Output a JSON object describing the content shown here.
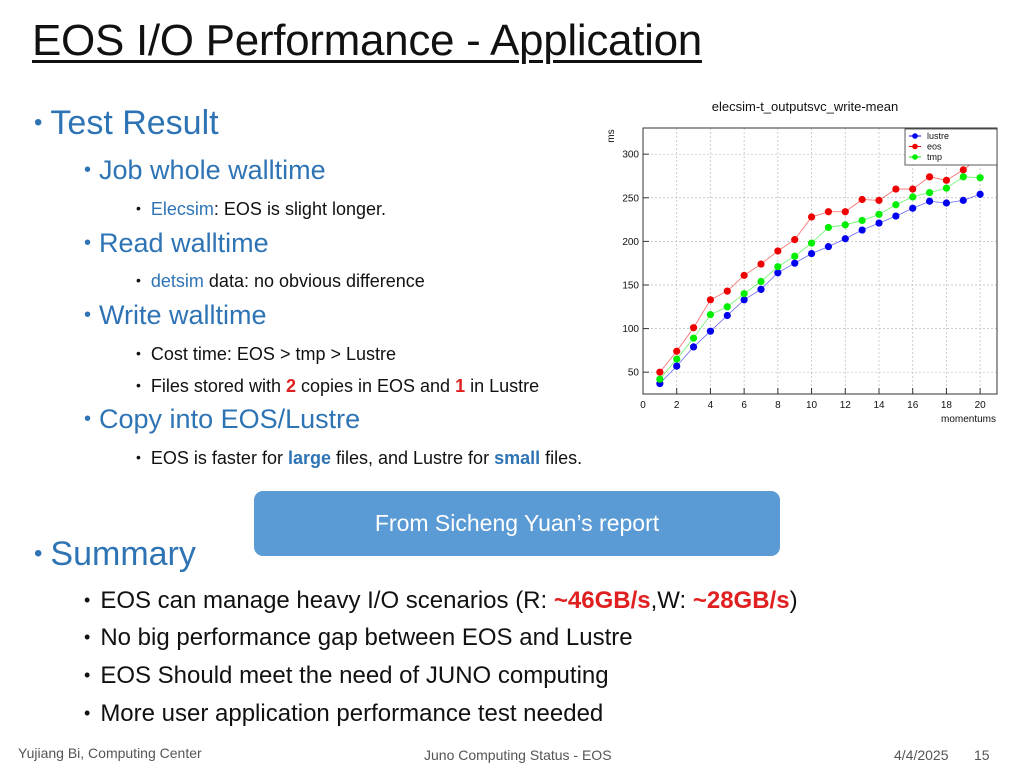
{
  "slide": {
    "title": "EOS I/O Performance - Application",
    "bullet_char": "•",
    "test_result": {
      "heading": "Test Result",
      "job_walltime": {
        "label": "Job whole walltime",
        "detail_key": "Elecsim",
        "detail_rest": ": EOS is slight longer."
      },
      "read_walltime": {
        "label": "Read walltime",
        "detail_key": "detsim",
        "detail_rest": " data: no obvious difference"
      },
      "write_walltime": {
        "label": "Write walltime",
        "detail1": "Cost time: EOS > tmp > Lustre",
        "detail2_a": "Files stored with ",
        "detail2_num1": "2",
        "detail2_b": " copies in EOS and ",
        "detail2_num2": "1",
        "detail2_c": " in Lustre"
      },
      "copy": {
        "label": "Copy into EOS/Lustre",
        "detail_a": "EOS is faster for ",
        "detail_large": "large",
        "detail_b": " files, and Lustre for ",
        "detail_small": "small",
        "detail_c": " files."
      }
    },
    "callout": "From Sicheng Yuan’s report",
    "summary": {
      "heading": "Summary",
      "item1_a": "EOS can manage heavy I/O scenarios (R: ",
      "item1_r": "~46GB/s",
      "item1_b": ",W: ",
      "item1_w": "~28GB/s",
      "item1_c": ")",
      "item2": "No big performance gap between EOS and Lustre",
      "item3": "EOS Should meet the need of JUNO computing",
      "item4": "More user application performance test needed"
    },
    "footer": {
      "author": "Yujiang Bi,  Computing Center",
      "center": "Juno Computing Status - EOS",
      "date": "4/4/2025",
      "page": "15"
    }
  },
  "chart_data": {
    "type": "line",
    "title": "elecsim-t_outputsvc_write-mean",
    "xlabel": "momentums",
    "ylabel": "ms",
    "xlim": [
      0,
      21
    ],
    "ylim": [
      25,
      330
    ],
    "xticks": [
      0,
      2,
      4,
      6,
      8,
      10,
      12,
      14,
      16,
      18,
      20
    ],
    "yticks": [
      50,
      100,
      150,
      200,
      250,
      300
    ],
    "grid": true,
    "legend_position": "top-right",
    "x": [
      1,
      2,
      3,
      4,
      5,
      6,
      7,
      8,
      9,
      10,
      11,
      12,
      13,
      14,
      15,
      16,
      17,
      18,
      19,
      20
    ],
    "series": [
      {
        "name": "lustre",
        "color": "#0000ee",
        "values": [
          37,
          57,
          79,
          97,
          115,
          133,
          145,
          164,
          175,
          186,
          194,
          203,
          213,
          221,
          229,
          238,
          246,
          244,
          247,
          254
        ]
      },
      {
        "name": "eos",
        "color": "#ee0000",
        "values": [
          50,
          74,
          101,
          133,
          143,
          161,
          174,
          189,
          202,
          228,
          234,
          234,
          248,
          247,
          260,
          260,
          274,
          270,
          282,
          297
        ]
      },
      {
        "name": "tmp",
        "color": "#00ee00",
        "values": [
          42,
          65,
          89,
          116,
          125,
          140,
          154,
          171,
          183,
          198,
          216,
          219,
          224,
          231,
          242,
          251,
          256,
          261,
          274,
          273
        ]
      }
    ]
  }
}
